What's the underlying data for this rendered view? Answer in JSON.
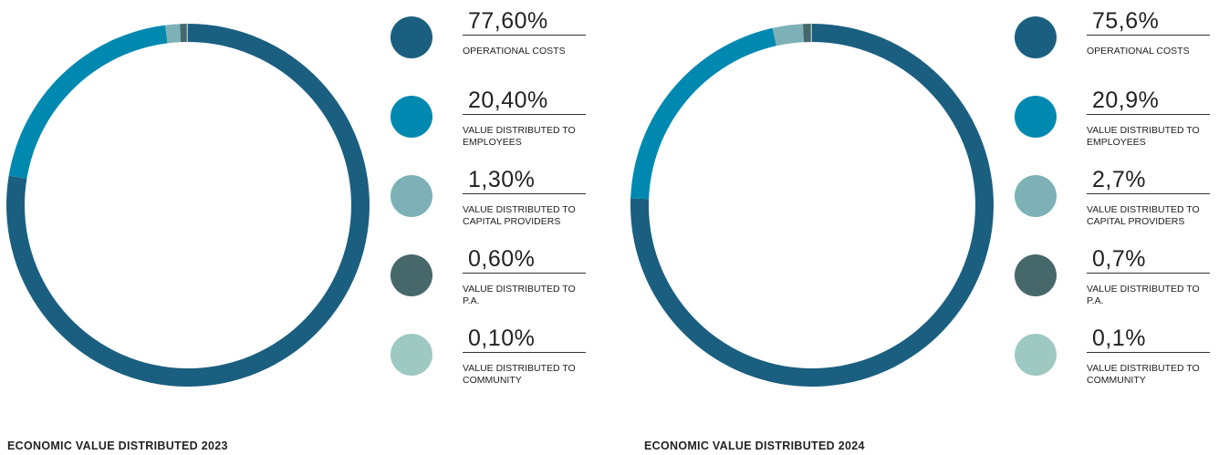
{
  "chart_data": [
    {
      "type": "pie",
      "title": "ECONOMIC VALUE DISTRIBUTED 2023",
      "categories": [
        "OPERATIONAL COSTS",
        "VALUE DISTRIBUTED TO EMPLOYEES",
        "VALUE DISTRIBUTED TO CAPITAL PROVIDERS",
        "VALUE DISTRIBUTED TO P.A.",
        "VALUE DISTRIBUTED TO COMMUNITY"
      ],
      "values": [
        77.6,
        20.4,
        1.3,
        0.6,
        0.1
      ],
      "value_labels": [
        "77,60%",
        "20,40%",
        "1,30%",
        "0,60%",
        "0,10%"
      ],
      "colors": [
        "#1b5f80",
        "#0089b0",
        "#7db0b7",
        "#46686b",
        "#9dc9c2"
      ]
    },
    {
      "type": "pie",
      "title": "ECONOMIC VALUE DISTRIBUTED 2024",
      "categories": [
        "OPERATIONAL COSTS",
        "VALUE DISTRIBUTED TO EMPLOYEES",
        "VALUE DISTRIBUTED TO CAPITAL PROVIDERS",
        "VALUE DISTRIBUTED TO P.A.",
        "VALUE DISTRIBUTED TO COMMUNITY"
      ],
      "values": [
        75.6,
        20.9,
        2.7,
        0.7,
        0.1
      ],
      "value_labels": [
        "75,6%",
        "20,9%",
        "2,7%",
        "0,7%",
        "0,1%"
      ],
      "colors": [
        "#1b5f80",
        "#0089b0",
        "#7db0b7",
        "#46686b",
        "#9dc9c2"
      ]
    }
  ]
}
